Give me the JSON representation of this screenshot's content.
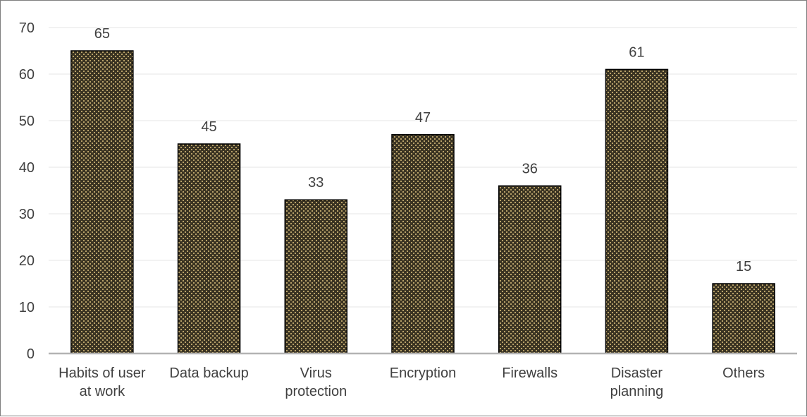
{
  "chart_data": {
    "type": "bar",
    "categories": [
      [
        "Habits of user",
        "at work"
      ],
      [
        "Data backup"
      ],
      [
        "Virus",
        "protection"
      ],
      [
        "Encryption"
      ],
      [
        "Firewalls"
      ],
      [
        "Disaster",
        "planning"
      ],
      [
        "Others"
      ]
    ],
    "values": [
      65,
      45,
      33,
      47,
      36,
      61,
      15
    ],
    "data_labels": [
      "65",
      "45",
      "33",
      "47",
      "36",
      "61",
      "15"
    ],
    "yticks": [
      "0",
      "10",
      "20",
      "30",
      "40",
      "50",
      "60",
      "70"
    ],
    "ylim": [
      0,
      70
    ],
    "title": "",
    "xlabel": "",
    "ylabel": "",
    "grid": true,
    "legend": "none",
    "colors": {
      "bar_fill": "#3a3322",
      "bar_pattern": "#b8a26a",
      "bar_stroke": "#000000",
      "grid": "#e6e6e6",
      "axis": "#b3b3b3",
      "text": "#404040"
    }
  }
}
